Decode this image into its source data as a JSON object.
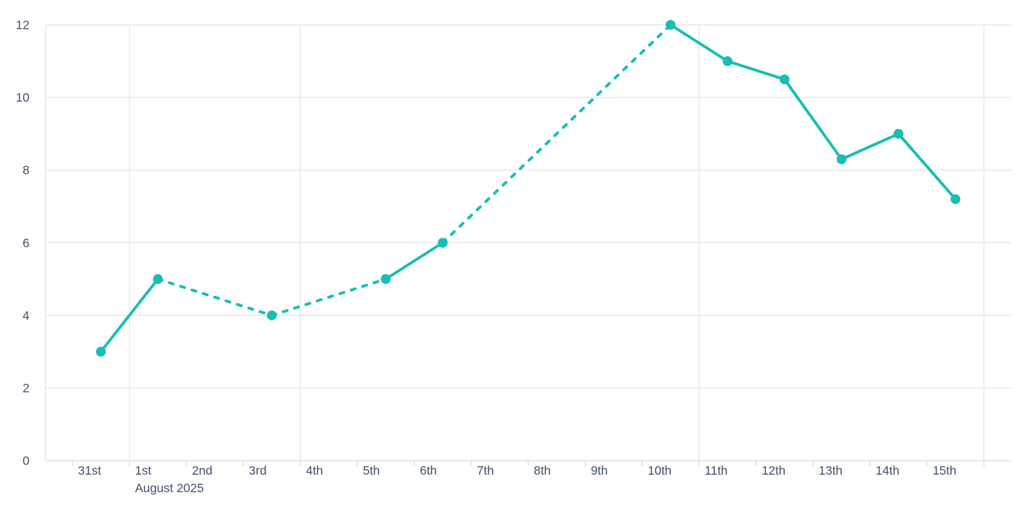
{
  "chart_data": {
    "type": "line",
    "title": "",
    "legend": "none",
    "grid_on": true,
    "x_axis": {
      "tick_labels": [
        "31st",
        "1st",
        "2nd",
        "3rd",
        "4th",
        "5th",
        "6th",
        "7th",
        "8th",
        "9th",
        "10th",
        "11th",
        "12th",
        "13th",
        "14th",
        "15th"
      ],
      "secondary_label": "August 2025",
      "secondary_label_under": "1st",
      "v_gridlines_at_boundary_index": [
        1,
        4,
        11,
        16
      ]
    },
    "y_axis": {
      "tick_labels": [
        "0",
        "2",
        "4",
        "6",
        "8",
        "10",
        "12"
      ],
      "min": 0,
      "max": 12
    },
    "series": [
      {
        "name": "series-1",
        "color": "#18BEB3",
        "marker": "circle",
        "points": [
          {
            "label": "31st",
            "value": 3
          },
          {
            "label": "1st",
            "value": 5
          },
          {
            "label": "3rd",
            "value": 4
          },
          {
            "label": "5th",
            "value": 5
          },
          {
            "label": "6th",
            "value": 6
          },
          {
            "label": "10th",
            "value": 12
          },
          {
            "label": "11th",
            "value": 11
          },
          {
            "label": "12th",
            "value": 10.5
          },
          {
            "label": "13th",
            "value": 8.3
          },
          {
            "label": "14th",
            "value": 9
          },
          {
            "label": "15th",
            "value": 7.2
          }
        ],
        "segment_styles": [
          "solid",
          "dashed",
          "dashed",
          "solid",
          "dashed",
          "solid",
          "solid",
          "solid",
          "solid",
          "solid"
        ]
      }
    ],
    "colors": {
      "grid": "#E4E8F1",
      "axis": "#D8DDE8",
      "text": "#414E68",
      "background": "#FFFFFF"
    }
  }
}
